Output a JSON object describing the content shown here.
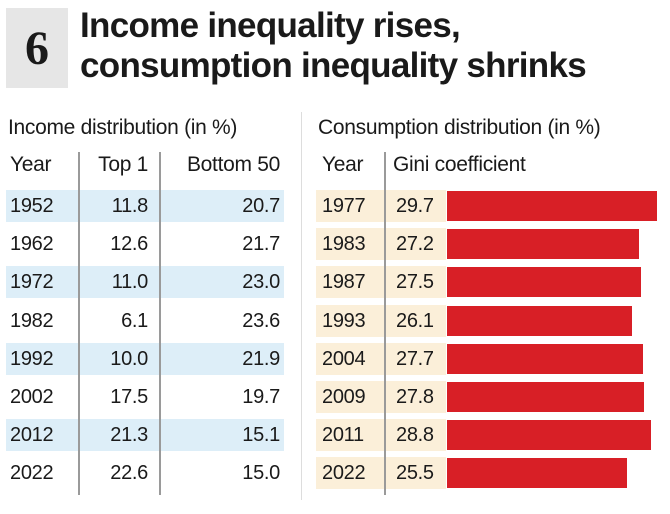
{
  "badge": "6",
  "title_lines": [
    "Income inequality rises,",
    "consumption inequality shrinks"
  ],
  "income_table": {
    "title": "Income distribution (in %)",
    "headers": [
      "Year",
      "Top 1",
      "Bottom 50"
    ],
    "rows": [
      {
        "year": "1952",
        "top1": "11.8",
        "bottom50": "20.7"
      },
      {
        "year": "1962",
        "top1": "12.6",
        "bottom50": "21.7"
      },
      {
        "year": "1972",
        "top1": "11.0",
        "bottom50": "23.0"
      },
      {
        "year": "1982",
        "top1": "6.1",
        "bottom50": "23.6"
      },
      {
        "year": "1992",
        "top1": "10.0",
        "bottom50": "21.9"
      },
      {
        "year": "2002",
        "top1": "17.5",
        "bottom50": "19.7"
      },
      {
        "year": "2012",
        "top1": "21.3",
        "bottom50": "15.1"
      },
      {
        "year": "2022",
        "top1": "22.6",
        "bottom50": "15.0"
      }
    ]
  },
  "colors": {
    "bar": "#d81f26",
    "income_row_shade": "#ddeef8",
    "consumption_row_shade": "#fbefd9"
  },
  "chart_data": {
    "type": "bar",
    "title": "Consumption distribution (in %)",
    "headers": [
      "Year",
      "Gini coefficient"
    ],
    "categories": [
      "1977",
      "1983",
      "1987",
      "1993",
      "2004",
      "2009",
      "2011",
      "2022"
    ],
    "values": [
      29.7,
      27.2,
      27.5,
      26.1,
      27.7,
      27.8,
      28.8,
      25.5
    ],
    "value_labels": [
      "29.7",
      "27.2",
      "27.5",
      "26.1",
      "27.7",
      "27.8",
      "28.8",
      "25.5"
    ],
    "orientation": "horizontal",
    "grid": false
  }
}
